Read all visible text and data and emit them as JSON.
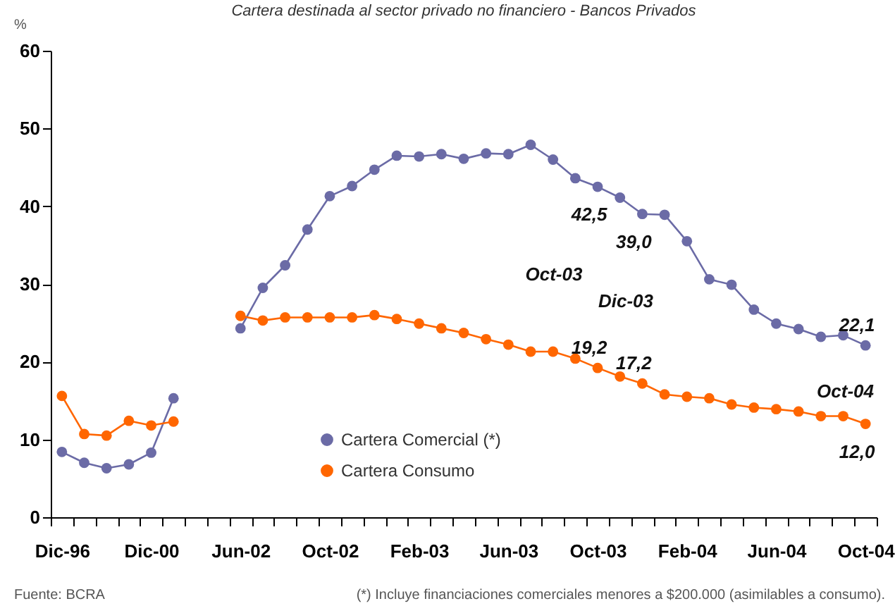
{
  "chart_data": {
    "type": "line",
    "title": "Cartera destinada al sector privado no financiero - Bancos Privados",
    "ylabel": "%",
    "categories": [
      "Dic-96",
      null,
      null,
      null,
      "Dic-00",
      null,
      null,
      null,
      "Jun-02",
      null,
      null,
      null,
      "Oct-02",
      null,
      null,
      null,
      "Feb-03",
      null,
      null,
      null,
      "Jun-03",
      null,
      null,
      null,
      "Oct-03",
      null,
      null,
      null,
      "Feb-04",
      null,
      null,
      null,
      "Jun-04",
      null,
      null,
      null,
      "Oct-04"
    ],
    "series": [
      {
        "name": "Cartera Comercial (*)",
        "color": "#6b6ba6",
        "values": [
          8.4,
          7.0,
          6.3,
          6.8,
          8.3,
          15.3,
          null,
          null,
          24.3,
          29.5,
          32.4,
          37.0,
          41.3,
          42.6,
          44.7,
          46.5,
          46.4,
          46.7,
          46.1,
          46.8,
          46.7,
          47.9,
          46.0,
          43.6,
          42.5,
          41.1,
          39.0,
          38.9,
          35.5,
          30.6,
          29.9,
          26.7,
          24.9,
          24.2,
          23.2,
          23.4,
          22.1
        ],
        "value_labels": [
          null,
          null,
          null,
          null,
          null,
          null,
          null,
          null,
          null,
          null,
          null,
          null,
          null,
          null,
          null,
          null,
          null,
          null,
          null,
          null,
          null,
          null,
          null,
          null,
          "42,5",
          null,
          "39,0",
          null,
          null,
          null,
          null,
          null,
          null,
          null,
          null,
          null,
          "22,1"
        ]
      },
      {
        "name": "Cartera Consumo",
        "color": "#ff6600",
        "values": [
          15.6,
          10.7,
          10.5,
          12.4,
          11.8,
          12.3,
          null,
          null,
          25.9,
          25.3,
          25.7,
          25.7,
          25.7,
          25.7,
          26.0,
          25.5,
          24.9,
          24.3,
          23.7,
          22.9,
          22.2,
          21.3,
          21.3,
          20.4,
          19.2,
          18.1,
          17.2,
          15.8,
          15.5,
          15.3,
          14.5,
          14.1,
          13.9,
          13.6,
          13.0,
          13.0,
          12.0
        ],
        "value_labels": [
          null,
          null,
          null,
          null,
          null,
          null,
          null,
          null,
          null,
          null,
          null,
          null,
          null,
          null,
          null,
          null,
          null,
          null,
          null,
          null,
          null,
          null,
          null,
          null,
          "19,2",
          null,
          "17,2",
          null,
          null,
          null,
          null,
          null,
          null,
          null,
          null,
          null,
          "12,0"
        ]
      }
    ],
    "ylim": [
      0,
      60
    ],
    "yticks": [
      0,
      10,
      20,
      30,
      40,
      50,
      60
    ],
    "grid": false,
    "legend": "bottom",
    "marker": "circle",
    "line_style": "solid",
    "annotations": [
      "Oct-03",
      "Dic-03",
      "Oct-04",
      "Fuente: BCRA",
      "(*) Incluye financiaciones comerciales menores a $200.000 (asimilables a consumo)."
    ]
  }
}
